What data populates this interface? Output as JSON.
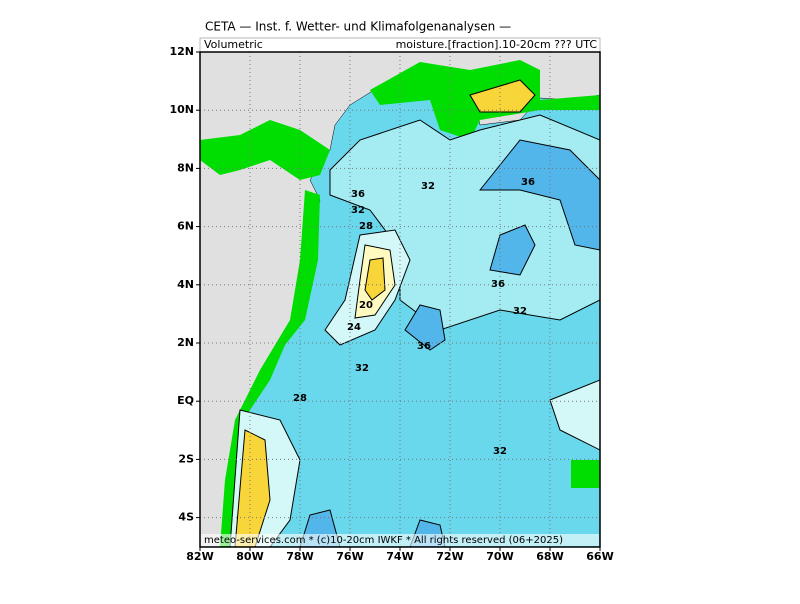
{
  "header": {
    "title": "CETA — Inst. f. Wetter- und Klimafolgenanalysen —",
    "left": "Volumetric",
    "right": "moisture.[fraction].10-20cm ??? UTC"
  },
  "axes": {
    "x_labels": [
      "82W",
      "80W",
      "78W",
      "76W",
      "74W",
      "72W",
      "70W",
      "68W",
      "66W"
    ],
    "y_labels": [
      "12N",
      "10N",
      "8N",
      "6N",
      "4N",
      "2N",
      "EQ",
      "2S",
      "4S"
    ]
  },
  "contour_labels": [
    36,
    32,
    36,
    32,
    28,
    20,
    24,
    36,
    36,
    32,
    32,
    28,
    32
  ],
  "footer": "meteo-services.com * (c)10-20cm IWKF * All rights reserved (06+2025)"
}
